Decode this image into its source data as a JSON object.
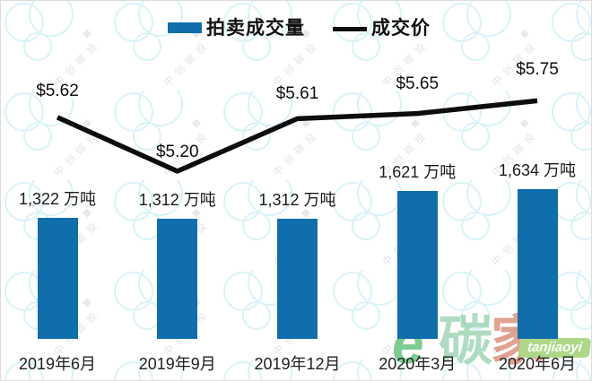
{
  "chart_data": {
    "type": "bar",
    "subtype": "bar-with-line-overlay",
    "title": "",
    "categories": [
      "2019年6月",
      "2019年9月",
      "2019年12月",
      "2020年3月",
      "2020年6月"
    ],
    "series": [
      {
        "name": "拍卖成交量",
        "type": "bar",
        "unit": "万吨",
        "values": [
          1322,
          1312,
          1312,
          1621,
          1634
        ],
        "value_labels": [
          "1,322 万吨",
          "1,312 万吨",
          "1,312 万吨",
          "1,621 万吨",
          "1,634 万吨"
        ],
        "color": "#0f6eab"
      },
      {
        "name": "成交价",
        "type": "line",
        "unit": "$",
        "values": [
          5.62,
          5.2,
          5.61,
          5.65,
          5.75
        ],
        "value_labels": [
          "$5.62",
          "$5.20",
          "$5.61",
          "$5.65",
          "$5.75"
        ],
        "color": "#0d0d0d"
      }
    ],
    "legend_position": "top",
    "grid": false,
    "axes_visible": false,
    "bar_axis_range": [
      0,
      1800
    ],
    "line_axis_range": [
      5.0,
      6.0
    ]
  },
  "watermarks": {
    "tiled_brand_text": "中创碳投",
    "corner_logo": {
      "letter": "e",
      "char_tan": "碳",
      "char_jia": "家",
      "badge_text": "tanjiaoyi"
    }
  },
  "colors": {
    "bar_fill": "#0f6eab",
    "line_stroke": "#0d0d0d",
    "watermark_circle": "#b8e6f2",
    "watermark_text": "#ccd2d9",
    "logo_green": "#2fae4e",
    "logo_tan_green": "#7fc79a",
    "logo_red": "#cf6a4f",
    "badge_green": "#7cc142"
  }
}
